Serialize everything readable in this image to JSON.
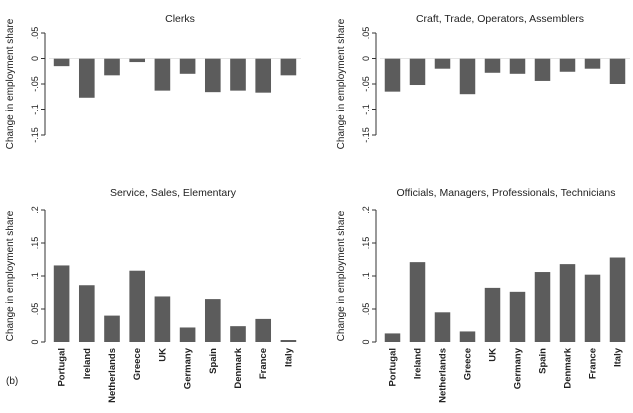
{
  "figure_label": "(b)",
  "chart_data": [
    {
      "type": "bar",
      "title": "Clerks",
      "ylabel": "Change in employment share",
      "categories": [
        "Portugal",
        "Ireland",
        "Netherlands",
        "Greece",
        "UK",
        "Germany",
        "Spain",
        "Denmark",
        "France",
        "Italy"
      ],
      "values": [
        -0.015,
        -0.077,
        -0.033,
        -0.007,
        -0.063,
        -0.03,
        -0.066,
        -0.063,
        -0.067,
        -0.033
      ],
      "ylim": [
        -0.15,
        0.05
      ],
      "yticks": [
        -0.15,
        -0.1,
        -0.05,
        0,
        0.05
      ],
      "ytick_labels": [
        "-.15",
        "-.1",
        "-.05",
        "0",
        ".05"
      ],
      "show_category_labels": false
    },
    {
      "type": "bar",
      "title": "Craft, Trade, Operators, Assemblers",
      "ylabel": "Change in employment share",
      "categories": [
        "Portugal",
        "Ireland",
        "Netherlands",
        "Greece",
        "UK",
        "Germany",
        "Spain",
        "Denmark",
        "France",
        "Italy"
      ],
      "values": [
        -0.065,
        -0.052,
        -0.02,
        -0.07,
        -0.028,
        -0.03,
        -0.044,
        -0.026,
        -0.02,
        -0.05
      ],
      "ylim": [
        -0.15,
        0.05
      ],
      "yticks": [
        -0.15,
        -0.1,
        -0.05,
        0,
        0.05
      ],
      "ytick_labels": [
        "-.15",
        "-.1",
        "-.05",
        "0",
        ".05"
      ],
      "show_category_labels": false
    },
    {
      "type": "bar",
      "title": "Service, Sales, Elementary",
      "ylabel": "Change in employment share",
      "categories": [
        "Portugal",
        "Ireland",
        "Netherlands",
        "Greece",
        "UK",
        "Germany",
        "Spain",
        "Denmark",
        "France",
        "Italy"
      ],
      "values": [
        0.116,
        0.086,
        0.04,
        0.108,
        0.069,
        0.022,
        0.065,
        0.024,
        0.035,
        0.003
      ],
      "ylim": [
        0,
        0.2
      ],
      "yticks": [
        0,
        0.05,
        0.1,
        0.15,
        0.2
      ],
      "ytick_labels": [
        "0",
        ".05",
        ".1",
        ".15",
        ".2"
      ],
      "show_category_labels": true
    },
    {
      "type": "bar",
      "title": "Officials, Managers, Professionals, Technicians",
      "ylabel": "Change in employment share",
      "categories": [
        "Portugal",
        "Ireland",
        "Netherlands",
        "Greece",
        "UK",
        "Germany",
        "Spain",
        "Denmark",
        "France",
        "Italy"
      ],
      "values": [
        0.013,
        0.121,
        0.045,
        0.016,
        0.082,
        0.076,
        0.106,
        0.118,
        0.102,
        0.128
      ],
      "ylim": [
        0,
        0.2
      ],
      "yticks": [
        0,
        0.05,
        0.1,
        0.15,
        0.2
      ],
      "ytick_labels": [
        "0",
        ".05",
        ".1",
        ".15",
        ".2"
      ],
      "show_category_labels": true
    }
  ],
  "colors": {
    "bar": "#5c5c5c",
    "axis": "#333333",
    "text": "#222222"
  }
}
